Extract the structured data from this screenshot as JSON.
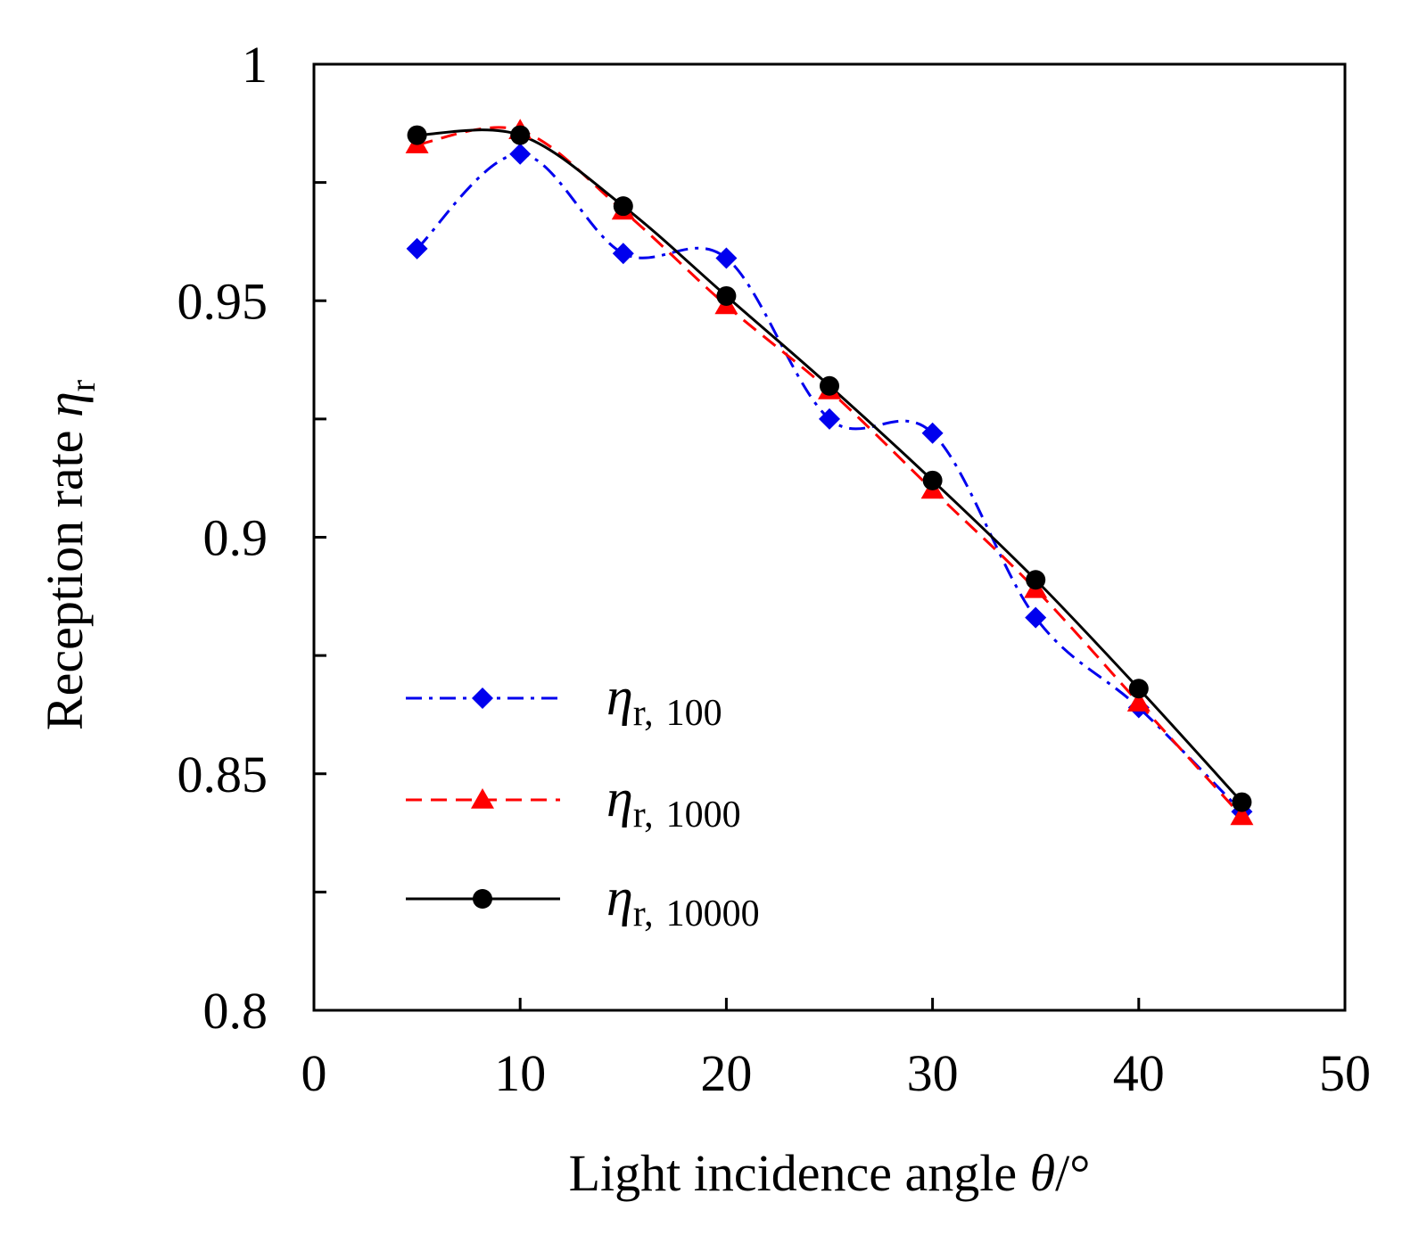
{
  "chart_data": {
    "type": "line",
    "xlabel_text": "Light incidence angle ",
    "xlabel_symbol": "θ",
    "xlabel_unit": "/°",
    "ylabel_text": "Reception rate ",
    "ylabel_symbol": "η",
    "ylabel_subscript": "r",
    "xlim": [
      0,
      50
    ],
    "ylim": [
      0.8,
      1
    ],
    "x_ticks": [
      0,
      10,
      20,
      30,
      40,
      50
    ],
    "x_tick_labels": [
      "0",
      "10",
      "20",
      "30",
      "40",
      "50"
    ],
    "y_ticks": [
      0.8,
      0.825,
      0.85,
      0.875,
      0.9,
      0.925,
      0.95,
      0.975,
      1
    ],
    "y_tick_labels": [
      "0.8",
      "",
      "0.85",
      "",
      "0.9",
      "",
      "0.95",
      "",
      "1"
    ],
    "grid": false,
    "legend_position": "lower-left",
    "series": [
      {
        "name_symbol": "η",
        "name_subscript": "r,",
        "name_suffix": "100",
        "color": "#0000ee",
        "line_style": "dash-dot",
        "marker": "diamond",
        "x": [
          5,
          10,
          15,
          20,
          25,
          30,
          35,
          40,
          45
        ],
        "y": [
          0.961,
          0.981,
          0.96,
          0.959,
          0.925,
          0.922,
          0.883,
          0.864,
          0.842
        ]
      },
      {
        "name_symbol": "η",
        "name_subscript": "r,",
        "name_suffix": "1000",
        "color": "#ff0000",
        "line_style": "dashed",
        "marker": "triangle",
        "x": [
          5,
          10,
          15,
          20,
          25,
          30,
          35,
          40,
          45
        ],
        "y": [
          0.983,
          0.986,
          0.969,
          0.949,
          0.931,
          0.91,
          0.889,
          0.865,
          0.841
        ]
      },
      {
        "name_symbol": "η",
        "name_subscript": "r,",
        "name_suffix": "10000",
        "color": "#000000",
        "line_style": "solid",
        "marker": "circle",
        "x": [
          5,
          10,
          15,
          20,
          25,
          30,
          35,
          40,
          45
        ],
        "y": [
          0.985,
          0.985,
          0.97,
          0.951,
          0.932,
          0.912,
          0.891,
          0.868,
          0.844
        ]
      }
    ]
  }
}
